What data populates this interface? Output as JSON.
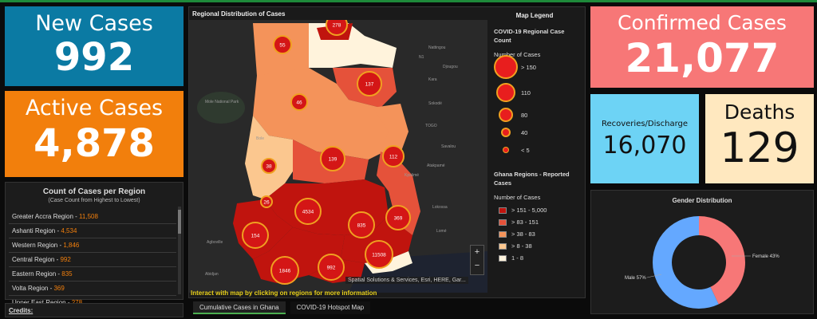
{
  "new_cases": {
    "label": "New Cases",
    "value": "992"
  },
  "active_cases": {
    "label": "Active Cases",
    "value": "4,878"
  },
  "confirmed_cases": {
    "label": "Confirmed Cases",
    "value": "21,077"
  },
  "recoveries": {
    "label": "Recoveries/Discharge",
    "value": "16,070"
  },
  "deaths": {
    "label": "Deaths",
    "value": "129"
  },
  "region_panel": {
    "title": "Count of Cases per Region",
    "subtitle": "(Case Count from Highest to Lowest)",
    "items": [
      {
        "name": "Greater Accra Region - ",
        "count": "11,508"
      },
      {
        "name": "Ashanti Region - ",
        "count": "4,534"
      },
      {
        "name": "Western Region - ",
        "count": "1,846"
      },
      {
        "name": "Central Region - ",
        "count": "992"
      },
      {
        "name": "Eastern Region - ",
        "count": "835"
      },
      {
        "name": "Volta Region - ",
        "count": "369"
      },
      {
        "name": "Upper East Region - ",
        "count": "278"
      }
    ]
  },
  "credits": "Credits:",
  "map": {
    "title": "Regional Distribution of Cases",
    "interact_text": "Interact with map by clicking on regions for more information",
    "attribution": "Spatial Solutions & Services, Esri, HERE, Gar...",
    "zoom_in": "+",
    "zoom_out": "−",
    "bubbles": [
      "278",
      "55",
      "137",
      "46",
      "112",
      "139",
      "38",
      "26",
      "4534",
      "835",
      "369",
      "154",
      "11508",
      "1846",
      "992"
    ],
    "place_labels": [
      "Nattingou",
      "Djougou",
      "Kara",
      "Sokodé",
      "Savalou",
      "Atakpamé",
      "Lokossa",
      "Lomé",
      "Agboville",
      "Abidjan",
      "Kpalimé",
      "TOGO",
      "Bole",
      "Mole National Park",
      "N1"
    ]
  },
  "legend": {
    "title": "Map Legend",
    "heading1": "COVID-19 Regional Case Count",
    "subhead1": "Number of Cases",
    "circles": [
      "> 150",
      "110",
      "80",
      "40",
      "< 5"
    ],
    "heading2": "Ghana Regions - Reported Cases",
    "subhead2": "Number of Cases",
    "classes": [
      {
        "label": "> 151 - 5,000",
        "color": "#c0140e"
      },
      {
        "label": "> 83 - 151",
        "color": "#e5523a"
      },
      {
        "label": "> 38 - 83",
        "color": "#f4935a"
      },
      {
        "label": "> 8 - 38",
        "color": "#fbc78f"
      },
      {
        "label": "1 - 8",
        "color": "#fff3dc"
      }
    ]
  },
  "tabs": [
    {
      "label": "Cumulative Cases in Ghana",
      "active": true
    },
    {
      "label": "COVID-19 Hotspot Map",
      "active": false
    }
  ],
  "gender": {
    "title": "Gender Distribution",
    "male_label": "Male 57%",
    "female_label": "Female 43%",
    "male_pct": 57,
    "female_pct": 43,
    "male_color": "#64a8ff",
    "female_color": "#f77777"
  }
}
